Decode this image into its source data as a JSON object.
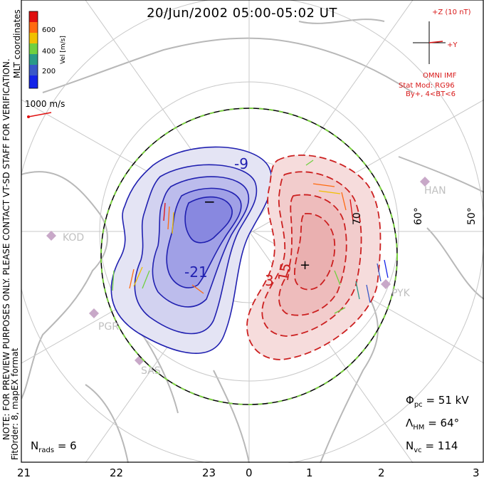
{
  "title": "20/Jun/2002 05:00-05:02 UT",
  "coordinate_label": "MLT coordinates",
  "colorbar": {
    "label": "Vel [m/s]",
    "ticks": [
      "600",
      "400",
      "200"
    ],
    "colors": [
      "#e01010",
      "#ff6a10",
      "#f0c000",
      "#70d040",
      "#2a9a88",
      "#3a58c8",
      "#1424e8"
    ]
  },
  "reference_vector": "1000 m/s",
  "imf": {
    "z_label": "+Z (10 nT)",
    "y_label": "+Y",
    "source": "OMNI IMF",
    "stat_mod": "Stat Mod: RG96",
    "condition": "By+, 4<BT<6"
  },
  "watermark": "NOTE: FOR PREVIEW PURPOSES ONLY. PLEASE CONTACT VT-SD STAFF FOR VERIFICATION.",
  "fit_order": "FitOrder: 8, mapEX format",
  "latitude_labels": [
    "60°",
    "50°",
    "70"
  ],
  "contour_labels": [
    "-9",
    "-21",
    "3",
    "15"
  ],
  "stations": [
    "HAN",
    "KOD",
    "PYK",
    "PGR",
    "SAS"
  ],
  "stats": {
    "phi_pc": "= 51 kV",
    "lambda_hm": "= 64°",
    "n_vc": "= 114",
    "n_rads": "= 6"
  },
  "mlt_labels": [
    "21",
    "22",
    "23",
    "0",
    "1",
    "2",
    "3"
  ],
  "colors": {
    "positive": "#cc2020",
    "negative": "#2020b0",
    "boundary_green": "#7ad040"
  }
}
